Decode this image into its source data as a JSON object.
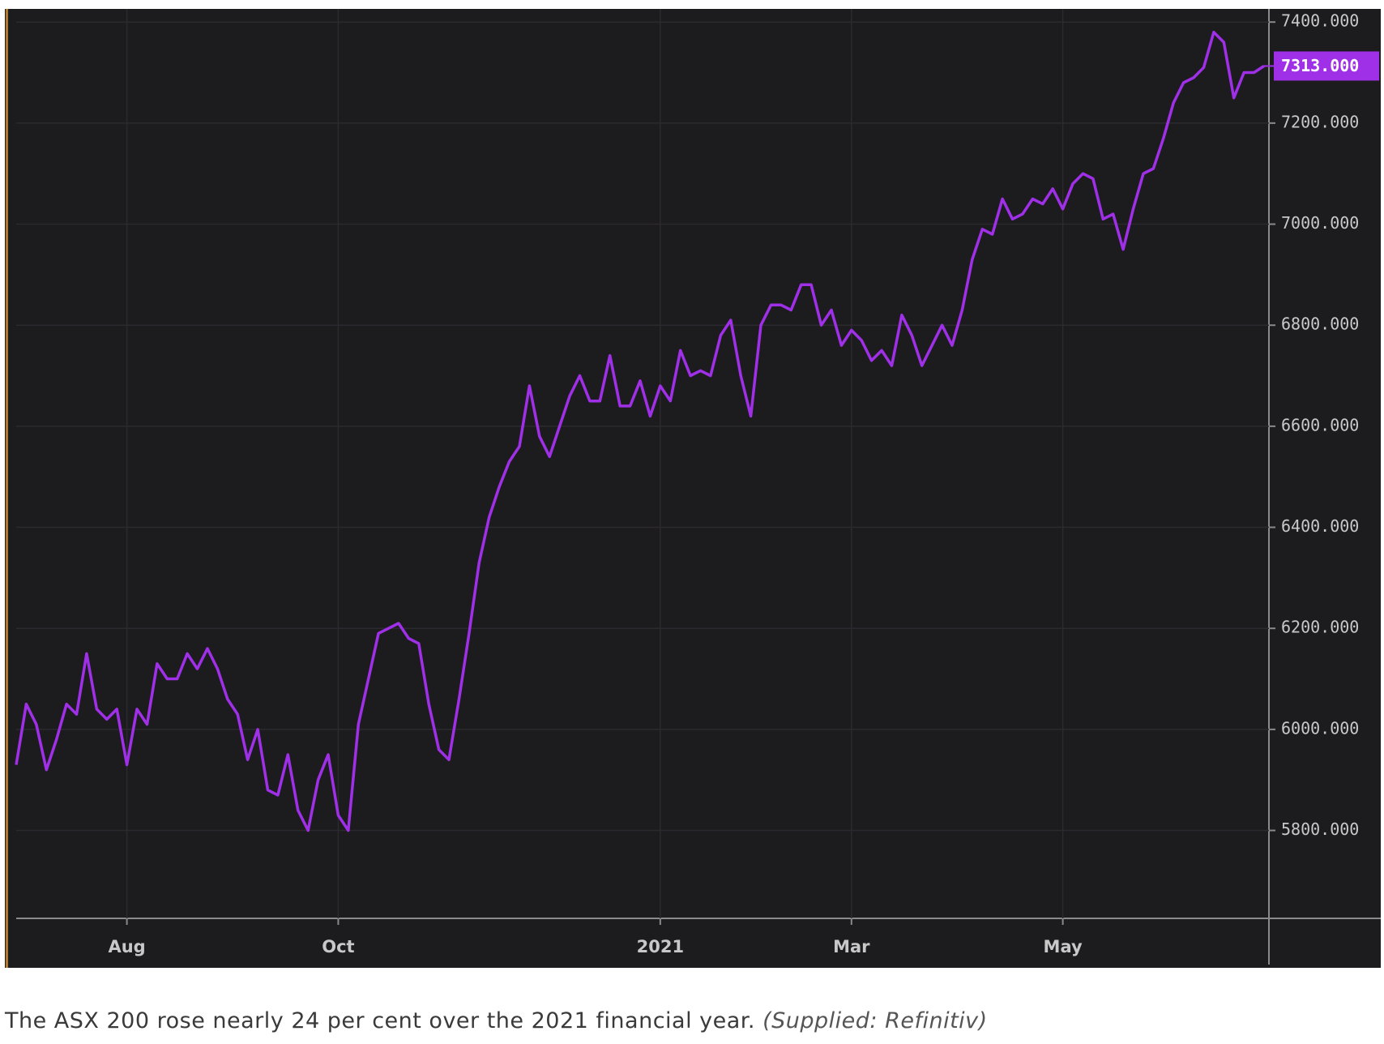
{
  "chart_data": {
    "type": "line",
    "caption": "The ASX 200 rose nearly 24 per cent over the 2021 financial year.",
    "caption_source": "(Supplied: Refinitiv)",
    "categories": [
      null,
      null,
      null,
      null,
      null,
      null,
      null,
      null,
      null,
      null,
      null,
      "Aug",
      null,
      null,
      null,
      null,
      null,
      null,
      null,
      null,
      null,
      null,
      null,
      null,
      null,
      null,
      null,
      null,
      null,
      null,
      null,
      null,
      "Oct",
      null,
      null,
      null,
      null,
      null,
      null,
      null,
      null,
      null,
      null,
      null,
      null,
      null,
      null,
      null,
      null,
      null,
      null,
      null,
      null,
      null,
      null,
      null,
      null,
      null,
      null,
      null,
      null,
      null,
      null,
      null,
      "2021",
      null,
      null,
      null,
      null,
      null,
      null,
      null,
      null,
      null,
      null,
      null,
      null,
      null,
      null,
      null,
      null,
      null,
      null,
      "Mar",
      null,
      null,
      null,
      null,
      null,
      null,
      null,
      null,
      null,
      null,
      null,
      null,
      null,
      null,
      null,
      null,
      null,
      null,
      null,
      null,
      "May",
      null,
      null,
      null,
      null,
      null,
      null,
      null,
      null,
      null,
      null,
      null,
      null,
      null,
      null,
      null,
      null,
      null,
      null,
      null,
      null
    ],
    "series": [
      {
        "name": "ASX 200",
        "color": "#a030e8",
        "values": [
          5930,
          6050,
          6010,
          5920,
          5980,
          6050,
          6030,
          6150,
          6040,
          6020,
          6040,
          5930,
          6040,
          6010,
          6130,
          6100,
          6100,
          6150,
          6120,
          6160,
          6120,
          6060,
          6030,
          5940,
          6000,
          5880,
          5870,
          5950,
          5840,
          5800,
          5900,
          5950,
          5830,
          5800,
          6010,
          6100,
          6190,
          6200,
          6210,
          6180,
          6170,
          6050,
          5960,
          5940,
          6060,
          6190,
          6330,
          6420,
          6480,
          6530,
          6560,
          6680,
          6580,
          6540,
          6600,
          6660,
          6700,
          6650,
          6650,
          6740,
          6640,
          6640,
          6690,
          6620,
          6680,
          6650,
          6750,
          6700,
          6710,
          6700,
          6780,
          6810,
          6700,
          6620,
          6800,
          6840,
          6840,
          6830,
          6880,
          6880,
          6800,
          6830,
          6760,
          6790,
          6770,
          6730,
          6750,
          6720,
          6820,
          6780,
          6720,
          6760,
          6800,
          6760,
          6830,
          6930,
          6990,
          6980,
          7050,
          7010,
          7020,
          7050,
          7040,
          7070,
          7030,
          7080,
          7100,
          7090,
          7010,
          7020,
          6950,
          7030,
          7100,
          7110,
          7170,
          7240,
          7280,
          7290,
          7310,
          7380,
          7360,
          7250,
          7300,
          7300,
          7313
        ]
      }
    ],
    "current_value": {
      "value": 7313,
      "label": "7313.000"
    },
    "ylim": [
      5626,
      7426
    ],
    "yticks": [
      {
        "value": 5800,
        "label": "5800.000"
      },
      {
        "value": 6000,
        "label": "6000.000"
      },
      {
        "value": 6200,
        "label": "6200.000"
      },
      {
        "value": 6400,
        "label": "6400.000"
      },
      {
        "value": 6600,
        "label": "6600.000"
      },
      {
        "value": 6800,
        "label": "6800.000"
      },
      {
        "value": 7000,
        "label": "7000.000"
      },
      {
        "value": 7200,
        "label": "7200.000"
      },
      {
        "value": 7400,
        "label": "7400.000"
      }
    ],
    "grid": true
  }
}
